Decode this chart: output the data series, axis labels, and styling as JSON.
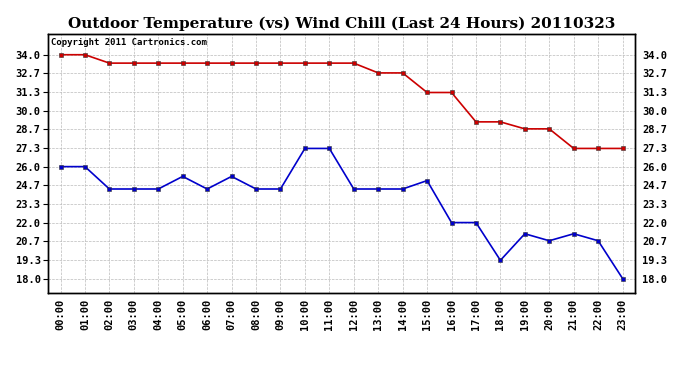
{
  "title": "Outdoor Temperature (vs) Wind Chill (Last 24 Hours) 20110323",
  "copyright": "Copyright 2011 Cartronics.com",
  "x_labels": [
    "00:00",
    "01:00",
    "02:00",
    "03:00",
    "04:00",
    "05:00",
    "06:00",
    "07:00",
    "08:00",
    "09:00",
    "10:00",
    "11:00",
    "12:00",
    "13:00",
    "14:00",
    "15:00",
    "16:00",
    "17:00",
    "18:00",
    "19:00",
    "20:00",
    "21:00",
    "22:00",
    "23:00"
  ],
  "temp_red": [
    34.0,
    34.0,
    33.4,
    33.4,
    33.4,
    33.4,
    33.4,
    33.4,
    33.4,
    33.4,
    33.4,
    33.4,
    33.4,
    32.7,
    32.7,
    31.3,
    31.3,
    29.2,
    29.2,
    28.7,
    28.7,
    27.3,
    27.3,
    27.3
  ],
  "temp_blue": [
    26.0,
    26.0,
    24.4,
    24.4,
    24.4,
    25.3,
    24.4,
    25.3,
    24.4,
    24.4,
    27.3,
    27.3,
    24.4,
    24.4,
    24.4,
    25.0,
    22.0,
    22.0,
    19.3,
    21.2,
    20.7,
    21.2,
    20.7,
    18.0
  ],
  "ylim": [
    17.0,
    35.5
  ],
  "yticks": [
    18.0,
    19.3,
    20.7,
    22.0,
    23.3,
    24.7,
    26.0,
    27.3,
    28.7,
    30.0,
    31.3,
    32.7,
    34.0
  ],
  "red_color": "#cc0000",
  "blue_color": "#0000cc",
  "bg_color": "#ffffff",
  "grid_color": "#bbbbbb",
  "title_fontsize": 11,
  "tick_fontsize": 7.5,
  "copyright_fontsize": 6.5,
  "ytick_labels": [
    "18.0",
    "19.3",
    "20.7",
    "22.0",
    "23.3",
    "24.7",
    "26.0",
    "27.3",
    "28.7",
    "30.0",
    "31.3",
    "32.7",
    "34.0"
  ]
}
